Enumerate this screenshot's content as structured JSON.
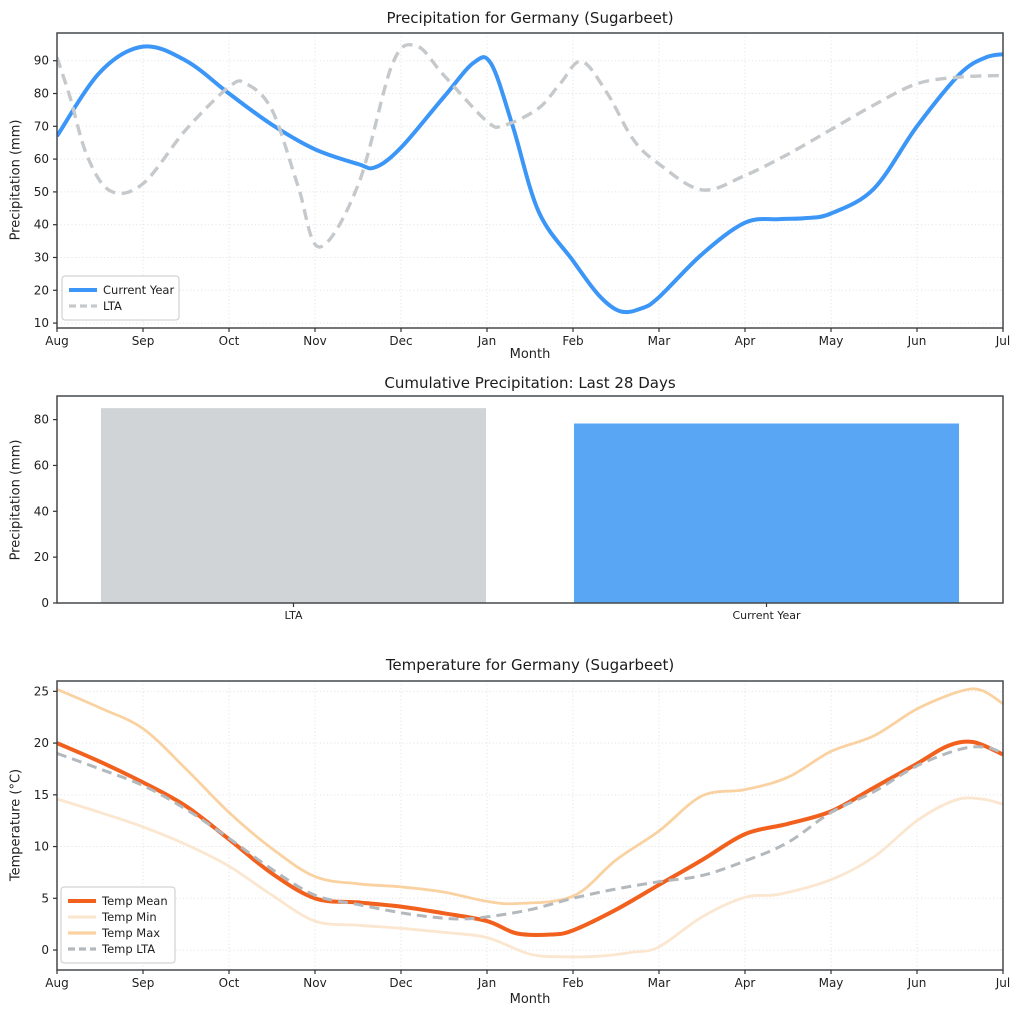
{
  "chart_data": [
    {
      "id": "precip_line",
      "type": "line",
      "title": "Precipitation for Germany (Sugarbeet)",
      "xlabel": "Month",
      "ylabel": "Precipitation (mm)",
      "x_tick_labels": [
        "Aug",
        "Sep",
        "Oct",
        "Nov",
        "Dec",
        "Jan",
        "Feb",
        "Mar",
        "Apr",
        "May",
        "Jun",
        "Jul"
      ],
      "yticks": [
        10,
        20,
        30,
        40,
        50,
        60,
        70,
        80,
        90
      ],
      "ylim": [
        8.5,
        98.45
      ],
      "xlim": [
        0,
        11
      ],
      "grid": true,
      "legend_position": "lower left",
      "series": [
        {
          "name": "Current Year",
          "color": "#3b96f7",
          "width": 4,
          "dash": null,
          "x": [
            0,
            0.5,
            1,
            1.5,
            2,
            2.5,
            3,
            3.5,
            3.7,
            4,
            4.5,
            4.85,
            5.05,
            5.3,
            5.6,
            6,
            6.3,
            6.55,
            6.8,
            7,
            7.5,
            8,
            8.4,
            8.7,
            9,
            9.5,
            10,
            10.5,
            10.8,
            11
          ],
          "y": [
            67,
            86.5,
            94.3,
            90,
            80,
            70.5,
            63,
            58.5,
            57.5,
            63.5,
            79,
            89.5,
            89,
            70,
            44,
            29,
            18.5,
            13.6,
            14.5,
            17.9,
            31,
            40.6,
            41.7,
            42,
            43.4,
            51,
            70,
            86,
            91,
            92
          ]
        },
        {
          "name": "LTA",
          "color": "#c6c9cc",
          "width": 3.4,
          "dash": "11 6.5",
          "x": [
            0,
            0.15,
            0.35,
            0.62,
            1,
            1.5,
            2,
            2.2,
            2.5,
            2.8,
            3.05,
            3.5,
            3.9,
            4.18,
            4.5,
            5,
            5.2,
            5.6,
            5.85,
            6.1,
            6.4,
            6.7,
            7,
            7.5,
            8,
            8.5,
            9,
            9.5,
            10,
            10.5,
            11
          ],
          "y": [
            91,
            79,
            61,
            50.3,
            52.5,
            69,
            82,
            83,
            75,
            52,
            33.2,
            52,
            89,
            94.5,
            85.5,
            71.5,
            70.3,
            75.5,
            83,
            89.8,
            80,
            66,
            58.5,
            50.6,
            55,
            61.5,
            69,
            76.5,
            83,
            85,
            85.5
          ]
        }
      ]
    },
    {
      "id": "precip_bar",
      "type": "bar",
      "title": "Cumulative Precipitation: Last 28 Days",
      "ylabel": "Precipitation (mm)",
      "categories": [
        "LTA",
        "Current Year"
      ],
      "values": [
        85,
        78.3
      ],
      "colors": [
        "#d0d4d7",
        "#58a6f4"
      ],
      "yticks": [
        0,
        20,
        40,
        60,
        80
      ],
      "ylim": [
        0,
        90.3
      ]
    },
    {
      "id": "temp_line",
      "type": "line",
      "title": "Temperature for Germany (Sugarbeet)",
      "xlabel": "Month",
      "ylabel": "Temperature (°C)",
      "x_tick_labels": [
        "Aug",
        "Sep",
        "Oct",
        "Nov",
        "Dec",
        "Jan",
        "Feb",
        "Mar",
        "Apr",
        "May",
        "Jun",
        "Jul"
      ],
      "yticks": [
        0,
        5,
        10,
        15,
        20,
        25
      ],
      "ylim": [
        -1.93,
        26.0
      ],
      "xlim": [
        0,
        11
      ],
      "grid": true,
      "legend_position": "lower left",
      "series": [
        {
          "name": "Temp Mean",
          "color": "#f2601d",
          "width": 4,
          "dash": null,
          "x": [
            0,
            0.5,
            1,
            1.5,
            2,
            2.5,
            3,
            3.5,
            4,
            4.5,
            5,
            5.35,
            5.75,
            6,
            6.5,
            7,
            7.5,
            8,
            8.5,
            9,
            9.5,
            10,
            10.35,
            10.65,
            11
          ],
          "y": [
            20,
            18.2,
            16.2,
            13.9,
            10.7,
            7.4,
            5.0,
            4.6,
            4.2,
            3.55,
            2.8,
            1.6,
            1.5,
            1.9,
            3.9,
            6.3,
            8.7,
            11.2,
            12.2,
            13.4,
            15.7,
            18.0,
            19.7,
            20.1,
            18.9
          ]
        },
        {
          "name": "Temp Min",
          "color": "#fbe6d0",
          "width": 2.8,
          "dash": null,
          "x": [
            0,
            0.5,
            1,
            1.5,
            2,
            2.5,
            3,
            3.5,
            4,
            4.5,
            5,
            5.5,
            5.9,
            6.3,
            6.7,
            7,
            7.5,
            8,
            8.4,
            9,
            9.5,
            10,
            10.45,
            10.75,
            11
          ],
          "y": [
            14.6,
            13.3,
            11.9,
            10.2,
            8.1,
            5.3,
            2.8,
            2.4,
            2.1,
            1.7,
            1.2,
            -0.4,
            -0.65,
            -0.6,
            -0.2,
            0.3,
            3.2,
            5.1,
            5.4,
            6.8,
            9.0,
            12.5,
            14.5,
            14.6,
            14.1
          ]
        },
        {
          "name": "Temp Max",
          "color": "#fad1a0",
          "width": 2.8,
          "dash": null,
          "x": [
            0,
            0.5,
            1,
            1.5,
            2,
            2.5,
            3,
            3.5,
            4,
            4.5,
            5,
            5.35,
            6,
            6.5,
            7,
            7.5,
            8,
            8.5,
            9,
            9.5,
            10,
            10.5,
            10.75,
            11
          ],
          "y": [
            25.2,
            23.4,
            21.4,
            17.5,
            13.3,
            9.8,
            7.1,
            6.4,
            6.1,
            5.6,
            4.7,
            4.5,
            5.2,
            8.7,
            11.5,
            14.9,
            15.5,
            16.7,
            19.2,
            20.7,
            23.3,
            25.0,
            25.1,
            23.8
          ]
        },
        {
          "name": "Temp LTA",
          "color": "#b3b8bc",
          "width": 3,
          "dash": "10 6",
          "x": [
            0,
            0.5,
            1,
            1.5,
            2,
            2.5,
            3,
            3.5,
            4,
            4.4,
            4.7,
            5,
            5.5,
            6,
            6.5,
            7,
            7.5,
            8,
            8.5,
            9,
            9.5,
            10,
            10.5,
            10.8,
            11
          ],
          "y": [
            19.0,
            17.5,
            15.9,
            13.6,
            10.8,
            7.8,
            5.3,
            4.4,
            3.6,
            3.15,
            3.0,
            3.2,
            3.9,
            5.0,
            5.9,
            6.6,
            7.2,
            8.6,
            10.4,
            13.3,
            15.3,
            17.8,
            19.4,
            19.6,
            19.0
          ]
        }
      ]
    }
  ]
}
